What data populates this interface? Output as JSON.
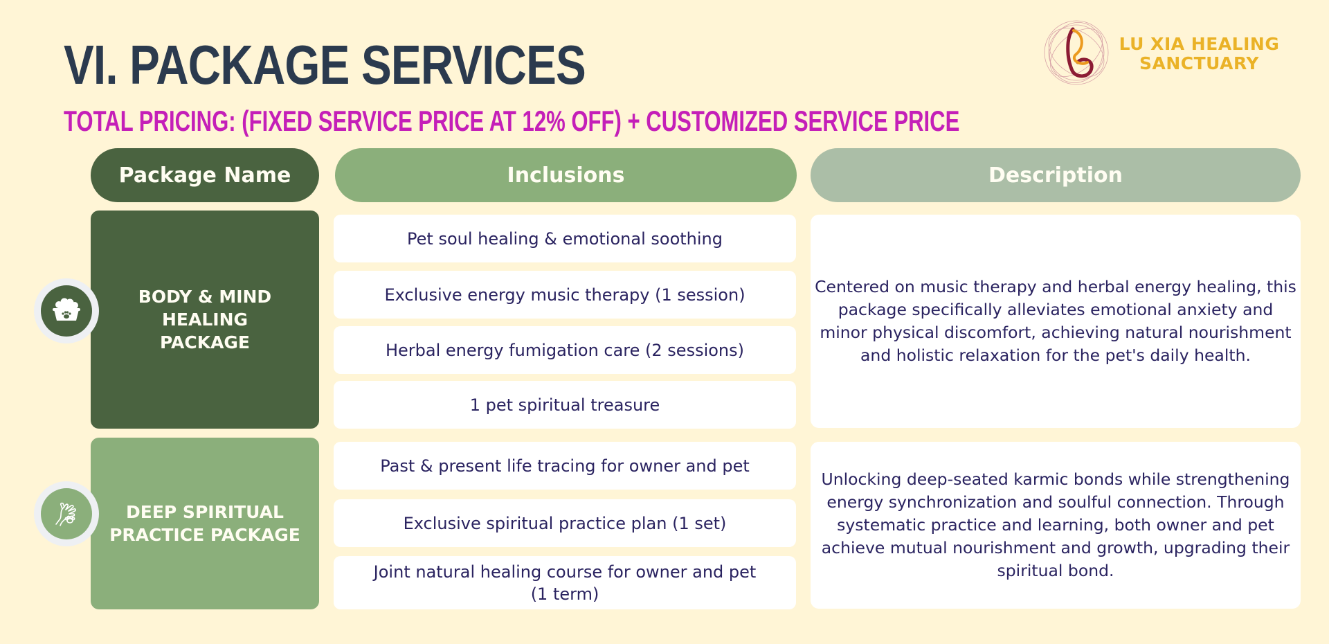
{
  "title": "VI. PACKAGE SERVICES",
  "subtitle": "TOTAL PRICING: (FIXED SERVICE PRICE AT 12% OFF) + CUSTOMIZED SERVICE PRICE",
  "logo": {
    "line1": "LU XIA HEALING",
    "line2": "SANCTUARY"
  },
  "headers": {
    "package_name": "Package Name",
    "inclusions": "Inclusions",
    "description": "Description"
  },
  "packages": [
    {
      "name_line1": "BODY & MIND HEALING",
      "name_line2": "PACKAGE",
      "icon": "pet-bowl-icon",
      "inclusions": [
        "Pet soul healing & emotional soothing",
        "Exclusive energy music therapy (1 session)",
        "Herbal energy fumigation care (2 sessions)",
        "1 pet spiritual treasure"
      ],
      "description": "Centered on music therapy and herbal energy healing, this package specifically alleviates emotional anxiety and minor physical discomfort, achieving natural nourishment and holistic relaxation for the pet's daily health."
    },
    {
      "name_line1": "DEEP SPIRITUAL",
      "name_line2": "PRACTICE PACKAGE",
      "icon": "hand-paw-icon",
      "inclusions": [
        "Past & present life tracing for owner and pet",
        "Exclusive spiritual practice plan (1 set)",
        "Joint natural healing course for owner and pet (1 term)"
      ],
      "description": "Unlocking deep-seated karmic bonds while strengthening energy synchronization and soulful connection. Through systematic practice and learning, both owner and pet achieve mutual nourishment and growth, upgrading their spiritual bond."
    }
  ],
  "colors": {
    "background": "#fff5d6",
    "title": "#2b3a4e",
    "subtitle": "#c41fb8",
    "dark_green": "#4a6340",
    "mid_green": "#8baf7b",
    "sage": "#abbea7",
    "body_text": "#2a2360",
    "logo_gold": "#eab227"
  }
}
